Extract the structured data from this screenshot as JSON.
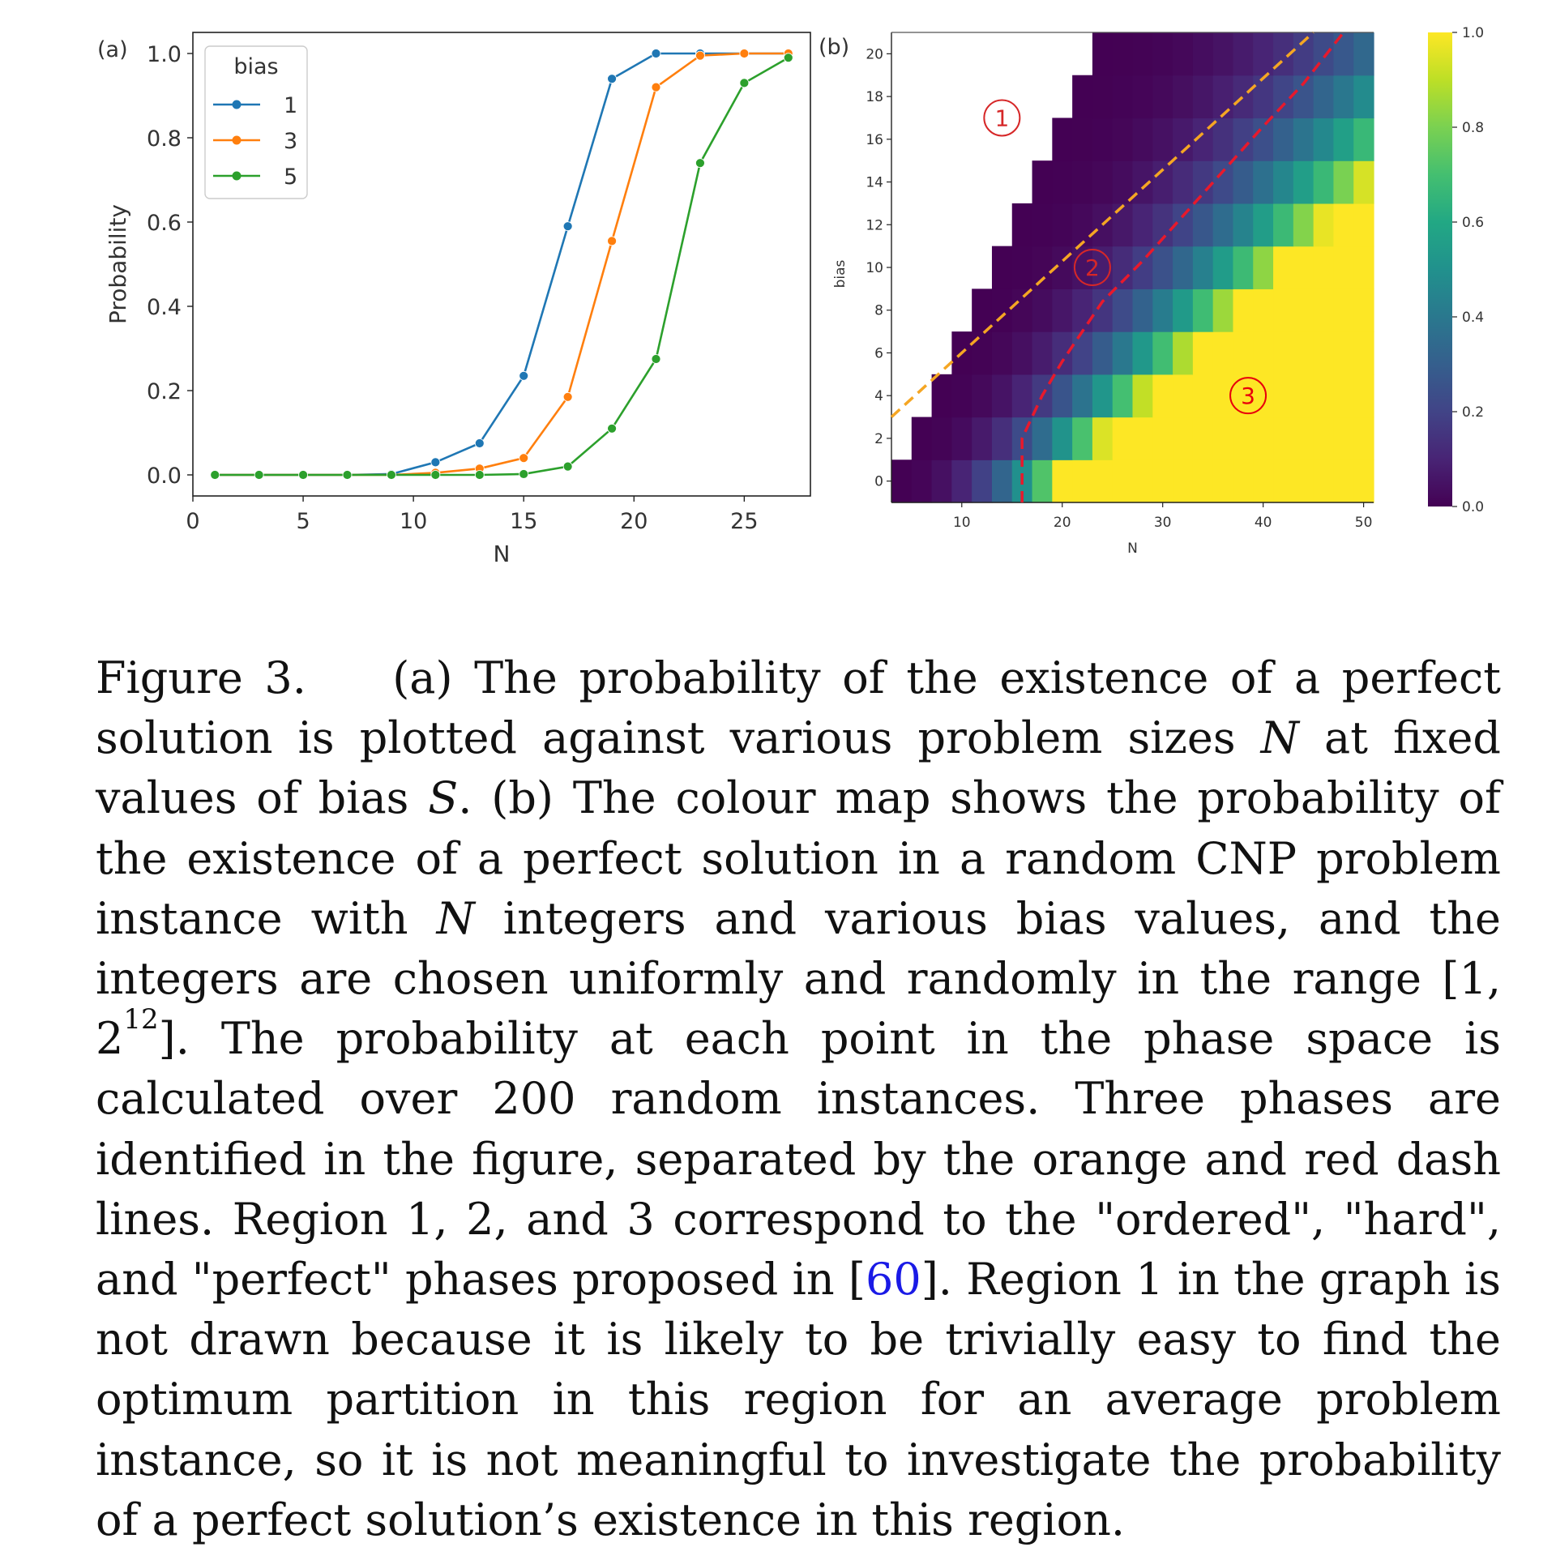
{
  "chart_data": [
    {
      "type": "line",
      "panel_label": "(a)",
      "xlabel": "N",
      "ylabel": "Probability",
      "xlim": [
        0,
        28
      ],
      "ylim": [
        -0.05,
        1.05
      ],
      "xticks": [
        0,
        5,
        10,
        15,
        20,
        25
      ],
      "yticks": [
        0.0,
        0.2,
        0.4,
        0.6,
        0.8,
        1.0
      ],
      "legend": {
        "title": "bias",
        "placement": "top-left"
      },
      "x": [
        1,
        3,
        5,
        7,
        9,
        11,
        13,
        15,
        17,
        19,
        21,
        23,
        25,
        27
      ],
      "series": [
        {
          "name": "1",
          "color": "#1f77b4",
          "values": [
            0,
            0,
            0,
            0,
            0.002,
            0.03,
            0.075,
            0.235,
            0.59,
            0.94,
            1.0,
            1.0,
            1.0,
            1.0
          ]
        },
        {
          "name": "3",
          "color": "#ff7f0e",
          "values": [
            0,
            0,
            0,
            0,
            0,
            0.005,
            0.015,
            0.04,
            0.185,
            0.555,
            0.92,
            0.995,
            1.0,
            1.0
          ]
        },
        {
          "name": "5",
          "color": "#2ca02c",
          "values": [
            0,
            0,
            0,
            0,
            0,
            0,
            0,
            0.002,
            0.02,
            0.11,
            0.275,
            0.74,
            0.93,
            0.99
          ]
        }
      ],
      "grid": false
    },
    {
      "type": "heatmap",
      "panel_label": "(b)",
      "xlabel": "N",
      "ylabel": "bias",
      "xlim": [
        3,
        51
      ],
      "ylim": [
        -1,
        21
      ],
      "xticks": [
        10,
        20,
        30,
        40,
        50
      ],
      "yticks": [
        0,
        2,
        4,
        6,
        8,
        10,
        12,
        14,
        16,
        18,
        20
      ],
      "cell": {
        "n_step": 2,
        "bias_step": 2
      },
      "colorbar": {
        "min": 0.0,
        "max": 1.0,
        "ticks": [
          0.0,
          0.2,
          0.4,
          0.6,
          0.8,
          1.0
        ],
        "colormap": "viridis"
      },
      "transition": "probability rises from ~0 to ~1 as N increases; the solid region begins where N > bias + 3 and becomes ~1 once N > 2.2*bias + 20",
      "orange_dash_line": {
        "color": "#f5a623",
        "points": [
          [
            3,
            3
          ],
          [
            45,
            21
          ]
        ]
      },
      "red_dash_line": {
        "color": "#e8192c",
        "points": [
          [
            16,
            -1
          ],
          [
            16,
            2
          ],
          [
            18,
            4
          ],
          [
            20,
            5.6
          ],
          [
            24,
            8.4
          ],
          [
            28,
            10.3
          ],
          [
            32,
            12.4
          ],
          [
            36,
            14.5
          ],
          [
            40,
            16.6
          ],
          [
            44,
            18.6
          ],
          [
            48,
            21
          ]
        ]
      },
      "region_markers": [
        {
          "label": "1",
          "n": 14,
          "bias": 17,
          "color": "#d62728"
        },
        {
          "label": "2",
          "n": 23,
          "bias": 10,
          "color": "#d62728"
        },
        {
          "label": "3",
          "n": 38.5,
          "bias": 4,
          "color": "#e8000b"
        }
      ]
    }
  ],
  "caption": {
    "label": "Figure 3.",
    "part_a": "(a) The probability of the existence of a perfect solution is plotted against various problem sizes",
    "var_n": "N",
    "part_b": "at fixed values of bias",
    "var_s": "S",
    "part_c": ". (b) The colour map shows the probability of the existence of a perfect solution in a random CNP problem instance with",
    "part_d": "integers and various bias values, and the integers are chosen uniformly and randomly in the range [1, 2",
    "exponent": "12",
    "part_e": "]. The probability at each point in the phase space is calculated over 200 random instances. Three phases are identified in the figure, separated by the orange and red dash lines. Region 1, 2, and 3 correspond to the \"ordered\", \"hard\", and \"perfect\" phases proposed in [",
    "cite": "60",
    "part_f": "]. Region 1 in the graph is not drawn because it is likely to be trivially easy to find the optimum partition in this region for an average problem instance, so it is not meaningful to investigate the probability of a perfect solution’s existence in this region."
  }
}
